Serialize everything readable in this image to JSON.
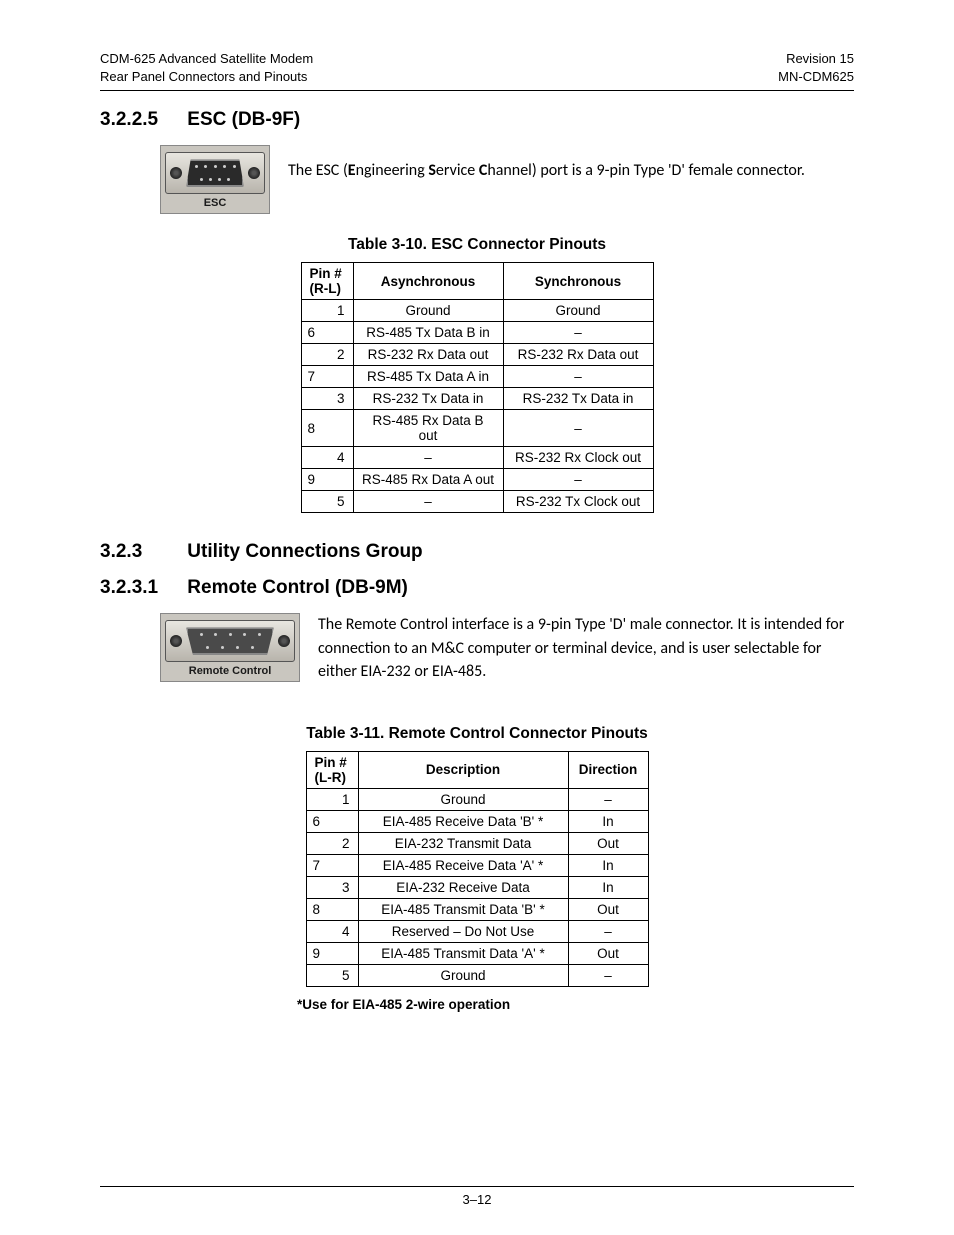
{
  "header": {
    "left_line1": "CDM-625 Advanced Satellite Modem",
    "left_line2": "Rear Panel Connectors and Pinouts",
    "right_line1": "Revision 15",
    "right_line2": "MN-CDM625"
  },
  "section_esc": {
    "number": "3.2.2.5",
    "title": "ESC (DB-9F)",
    "connector_label": "ESC",
    "body_prefix": "The ESC (",
    "body_e": "E",
    "body_mid1": "ngineering ",
    "body_s": "S",
    "body_mid2": "ervice ",
    "body_c": "C",
    "body_suffix": "hannel) port is a 9-pin Type 'D' female connector."
  },
  "table_esc": {
    "caption": "Table 3-10.  ESC Connector Pinouts",
    "head_pin_line1": "Pin #",
    "head_pin_line2": "(R-L)",
    "head_async": "Asynchronous",
    "head_sync": "Synchronous",
    "rows": [
      {
        "pin": "1",
        "align": "right",
        "async": "Ground",
        "sync": "Ground"
      },
      {
        "pin": "6",
        "align": "left",
        "async": "RS-485 Tx Data B in",
        "sync": "–"
      },
      {
        "pin": "2",
        "align": "right",
        "async": "RS-232 Rx Data out",
        "sync": "RS-232 Rx Data out"
      },
      {
        "pin": "7",
        "align": "left",
        "async": "RS-485 Tx Data A in",
        "sync": "–"
      },
      {
        "pin": "3",
        "align": "right",
        "async": "RS-232 Tx Data in",
        "sync": "RS-232 Tx Data in"
      },
      {
        "pin": "8",
        "align": "left",
        "async": "RS-485 Rx Data B out",
        "sync": "–"
      },
      {
        "pin": "4",
        "align": "right",
        "async": "–",
        "sync": "RS-232 Rx Clock out"
      },
      {
        "pin": "9",
        "align": "left",
        "async": "RS-485 Rx Data A out",
        "sync": "–"
      },
      {
        "pin": "5",
        "align": "right",
        "async": "–",
        "sync": "RS-232 Tx Clock out"
      }
    ]
  },
  "section_util": {
    "number": "3.2.3",
    "title": "Utility Connections Group"
  },
  "section_rc": {
    "number": "3.2.3.1",
    "title": "Remote Control (DB-9M)",
    "connector_label": "Remote Control",
    "body": "The Remote Control interface is a 9-pin Type 'D' male connector. It is intended for connection to an M&C computer or terminal device, and is user selectable for either EIA-232 or EIA-485."
  },
  "table_rc": {
    "caption": "Table 3-11.  Remote Control Connector Pinouts",
    "head_pin_line1": "Pin #",
    "head_pin_line2": "(L-R)",
    "head_desc": "Description",
    "head_dir": "Direction",
    "rows": [
      {
        "pin": "1",
        "align": "right",
        "desc": "Ground",
        "dir": "–"
      },
      {
        "pin": "6",
        "align": "left",
        "desc": "EIA-485 Receive Data 'B' *",
        "dir": "In"
      },
      {
        "pin": "2",
        "align": "right",
        "desc": "EIA-232 Transmit Data",
        "dir": "Out"
      },
      {
        "pin": "7",
        "align": "left",
        "desc": "EIA-485 Receive Data 'A' *",
        "dir": "In"
      },
      {
        "pin": "3",
        "align": "right",
        "desc": "EIA-232 Receive Data",
        "dir": "In"
      },
      {
        "pin": "8",
        "align": "left",
        "desc": "EIA-485 Transmit Data 'B' *",
        "dir": "Out"
      },
      {
        "pin": "4",
        "align": "right",
        "desc": "Reserved – Do Not Use",
        "dir": "–"
      },
      {
        "pin": "9",
        "align": "left",
        "desc": "EIA-485 Transmit Data 'A' *",
        "dir": "Out"
      },
      {
        "pin": "5",
        "align": "right",
        "desc": "Ground",
        "dir": "–"
      }
    ],
    "footnote": "*Use for EIA-485 2-wire operation"
  },
  "footer": {
    "page_number": "3–12"
  }
}
